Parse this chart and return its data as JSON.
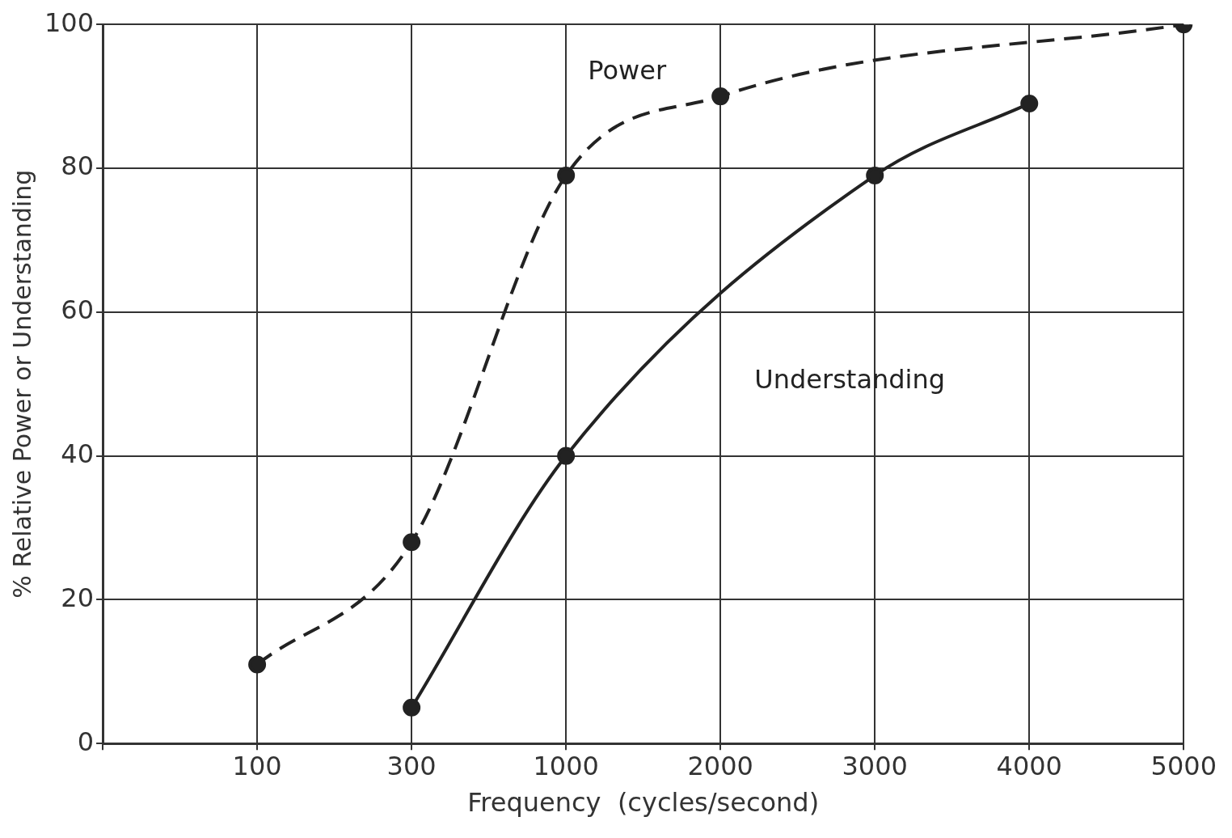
{
  "chart_data": {
    "type": "line",
    "xlabel": "Frequency  (cycles/second)",
    "ylabel": "% Relative Power or Understanding",
    "categories": [
      null,
      "100",
      "300",
      "1000",
      "2000",
      "3000",
      "4000",
      "5000"
    ],
    "series": [
      {
        "name": "Power",
        "color": "#222222",
        "line_style": "dashed",
        "values": [
          null,
          11,
          28,
          79,
          90,
          null,
          null,
          100
        ]
      },
      {
        "name": "Understanding",
        "color": "#222222",
        "line_style": "solid",
        "values": [
          null,
          null,
          5,
          40,
          null,
          79,
          89,
          null
        ]
      }
    ],
    "ylim": [
      0,
      100
    ],
    "yticks": [
      0,
      20,
      40,
      60,
      80,
      100
    ],
    "grid": true,
    "legend": false,
    "marker": "circle"
  }
}
